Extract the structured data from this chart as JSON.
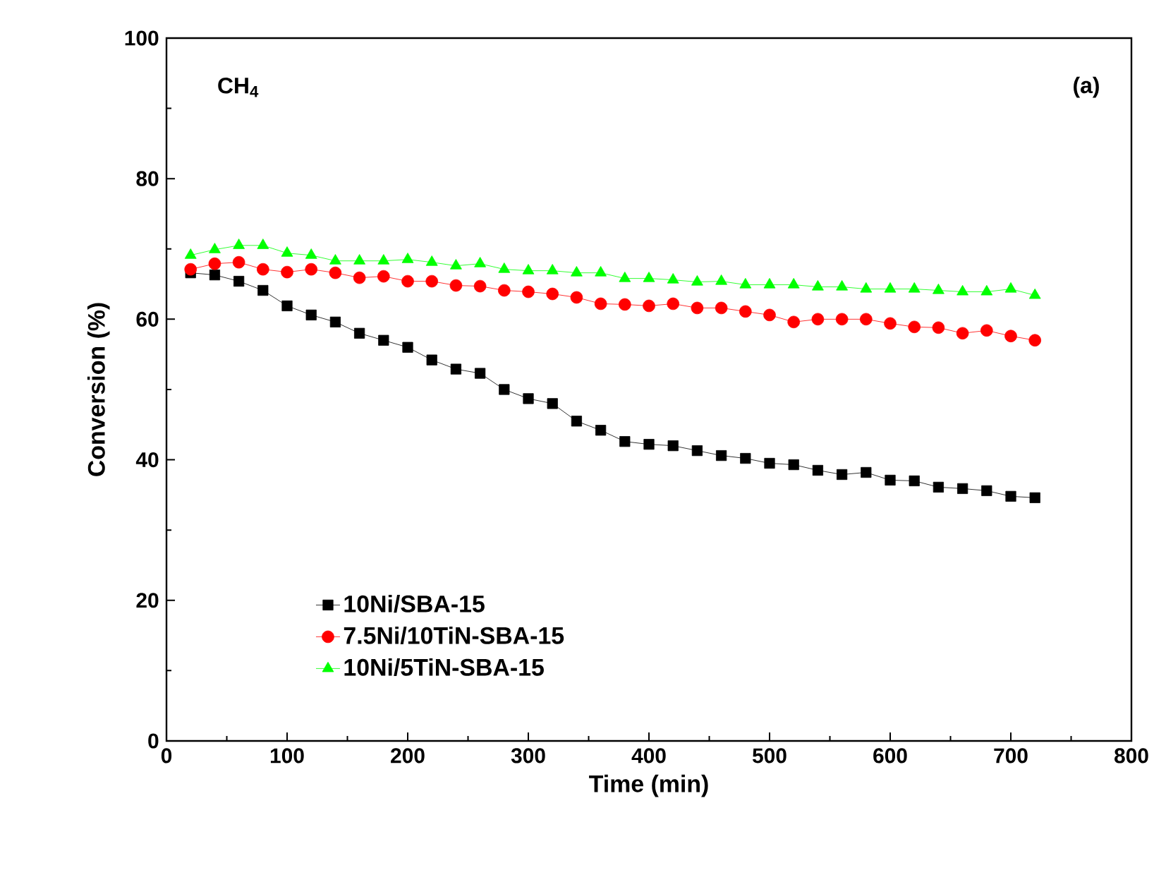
{
  "chart_data": {
    "type": "line",
    "xlabel": "Time (min)",
    "ylabel": "Conversion (%)",
    "annotations": [
      "CH$_{4}$",
      "(a)"
    ],
    "x": [
      20,
      40,
      60,
      80,
      100,
      120,
      140,
      160,
      180,
      200,
      220,
      240,
      260,
      280,
      300,
      320,
      340,
      360,
      380,
      400,
      420,
      440,
      460,
      480,
      500,
      520,
      540,
      560,
      580,
      600,
      620,
      640,
      660,
      680,
      700,
      720
    ],
    "xlim": [
      0,
      800
    ],
    "xticks": [
      0,
      100,
      200,
      300,
      400,
      500,
      600,
      700,
      800
    ],
    "ylim": [
      0,
      100
    ],
    "yticks": [
      0,
      20,
      40,
      60,
      80,
      100
    ],
    "legend": "bottom left",
    "grid": false,
    "line_style": "solid",
    "series": [
      {
        "name": "10Ni/SBA-15",
        "color": "#000000",
        "marker": "square",
        "values": [
          66.6,
          66.3,
          65.4,
          64.1,
          61.9,
          60.6,
          59.6,
          58.0,
          57.0,
          56.0,
          54.2,
          52.9,
          52.3,
          50.0,
          48.7,
          48.0,
          45.5,
          44.2,
          42.6,
          42.2,
          42.0,
          41.3,
          40.6,
          40.2,
          39.5,
          39.3,
          38.5,
          37.9,
          38.2,
          37.1,
          37.0,
          36.1,
          35.9,
          35.6,
          34.8,
          34.6
        ]
      },
      {
        "name": "7.5Ni/10TiN-SBA-15",
        "color": "#ff0000",
        "marker": "circle",
        "values": [
          67.1,
          67.9,
          68.1,
          67.1,
          66.7,
          67.1,
          66.6,
          65.9,
          66.1,
          65.4,
          65.4,
          64.8,
          64.7,
          64.1,
          63.9,
          63.6,
          63.1,
          62.2,
          62.1,
          61.9,
          62.2,
          61.6,
          61.6,
          61.1,
          60.6,
          59.6,
          60.0,
          60.0,
          60.0,
          59.4,
          58.9,
          58.8,
          58.0,
          58.4,
          57.6,
          57.0
        ]
      },
      {
        "name": "10Ni/5TiN-SBA-15",
        "color": "#00ff00",
        "marker": "triangle",
        "values": [
          69.1,
          69.9,
          70.5,
          70.5,
          69.4,
          69.1,
          68.3,
          68.3,
          68.3,
          68.5,
          68.1,
          67.6,
          67.9,
          67.1,
          66.9,
          66.9,
          66.6,
          66.6,
          65.8,
          65.8,
          65.6,
          65.3,
          65.4,
          64.9,
          64.9,
          64.9,
          64.6,
          64.6,
          64.3,
          64.3,
          64.3,
          64.1,
          63.9,
          63.9,
          64.3,
          63.4
        ]
      }
    ]
  }
}
